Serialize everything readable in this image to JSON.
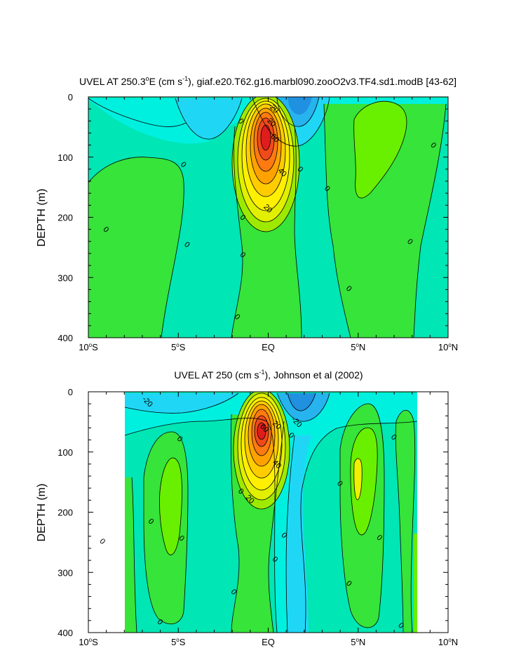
{
  "chart_data": [
    {
      "type": "contour",
      "title_main": "UVEL AT 250.3",
      "title_deg": "o",
      "title_mid": "E (cm s",
      "title_sup": "-1",
      "title_rest": "), giaf.e20.T62.g16.marbl090.zooO2v3.TF4.sd1.modB [43-62]",
      "ylabel": "DEPTH (m)",
      "xlim": [
        -10,
        10
      ],
      "ylim": [
        0,
        400
      ],
      "y_inverted": true,
      "xticks": [
        {
          "v": -10,
          "num": "10",
          "deg": "o",
          "hem": "S"
        },
        {
          "v": -5,
          "num": "5",
          "deg": "o",
          "hem": "S"
        },
        {
          "v": 0,
          "num": "EQ",
          "deg": "",
          "hem": ""
        },
        {
          "v": 5,
          "num": "5",
          "deg": "o",
          "hem": "N"
        },
        {
          "v": 10,
          "num": "10",
          "deg": "o",
          "hem": "N"
        }
      ],
      "yticks": [
        {
          "v": 0,
          "label": "0"
        },
        {
          "v": 100,
          "label": "100"
        },
        {
          "v": 200,
          "label": "200"
        },
        {
          "v": 300,
          "label": "300"
        },
        {
          "v": 400,
          "label": "400"
        }
      ],
      "contour_interval": 10,
      "core": {
        "x": 0.0,
        "depth": 90,
        "max_speed": 90
      },
      "contour_labels": [
        {
          "x": 0.3,
          "y": 18,
          "text": "-20"
        },
        {
          "x": 0.2,
          "y": 42,
          "text": "20"
        },
        {
          "x": 0.4,
          "y": 68,
          "text": "60"
        },
        {
          "x": 0.8,
          "y": 125,
          "text": "40"
        },
        {
          "x": 0.0,
          "y": 185,
          "text": "20"
        },
        {
          "x": -1.5,
          "y": 40,
          "text": "0"
        },
        {
          "x": -4.7,
          "y": 112,
          "text": "0"
        },
        {
          "x": -9.0,
          "y": 220,
          "text": "0"
        },
        {
          "x": -4.5,
          "y": 245,
          "text": "0"
        },
        {
          "x": -1.4,
          "y": 200,
          "text": "0"
        },
        {
          "x": -1.4,
          "y": 262,
          "text": "0"
        },
        {
          "x": -1.7,
          "y": 365,
          "text": "0"
        },
        {
          "x": 1.8,
          "y": 120,
          "text": "0"
        },
        {
          "x": 3.3,
          "y": 152,
          "text": "0"
        },
        {
          "x": 4.5,
          "y": 318,
          "text": "0"
        },
        {
          "x": 7.9,
          "y": 240,
          "text": "0"
        },
        {
          "x": 9.2,
          "y": 80,
          "text": "0"
        }
      ]
    },
    {
      "type": "contour",
      "title_main": "UVEL AT 250 (cm s",
      "title_sup": "-1",
      "title_rest": "), Johnson et al (2002)",
      "ylabel": "DEPTH (m)",
      "xlim": [
        -10,
        10
      ],
      "ylim": [
        0,
        400
      ],
      "y_inverted": true,
      "data_extent_x": [
        -8,
        8.3
      ],
      "xticks": [
        {
          "v": -10,
          "num": "10",
          "deg": "o",
          "hem": "S"
        },
        {
          "v": -5,
          "num": "5",
          "deg": "o",
          "hem": "S"
        },
        {
          "v": 0,
          "num": "EQ",
          "deg": "",
          "hem": ""
        },
        {
          "v": 5,
          "num": "5",
          "deg": "o",
          "hem": "N"
        },
        {
          "v": 10,
          "num": "10",
          "deg": "o",
          "hem": "N"
        }
      ],
      "yticks": [
        {
          "v": 0,
          "label": "0"
        },
        {
          "v": 100,
          "label": "100"
        },
        {
          "v": 200,
          "label": "200"
        },
        {
          "v": 300,
          "label": "300"
        },
        {
          "v": 400,
          "label": "400"
        }
      ],
      "contour_interval": 10,
      "core": {
        "x": -0.3,
        "depth": 70,
        "max_speed": 90
      },
      "contour_labels": [
        {
          "x": -6.7,
          "y": 16,
          "text": "-20"
        },
        {
          "x": 1.6,
          "y": 50,
          "text": "-20"
        },
        {
          "x": -0.2,
          "y": 60,
          "text": "60"
        },
        {
          "x": 0.5,
          "y": 55,
          "text": "20"
        },
        {
          "x": 0.5,
          "y": 120,
          "text": "40"
        },
        {
          "x": -1.0,
          "y": 178,
          "text": "20"
        },
        {
          "x": -1.5,
          "y": 165,
          "text": "0"
        },
        {
          "x": 1.3,
          "y": 72,
          "text": "0"
        },
        {
          "x": -4.9,
          "y": 78,
          "text": "0"
        },
        {
          "x": -6.5,
          "y": 215,
          "text": "0"
        },
        {
          "x": -9.2,
          "y": 248,
          "text": "0"
        },
        {
          "x": -4.8,
          "y": 243,
          "text": "0"
        },
        {
          "x": -6.0,
          "y": 382,
          "text": "0"
        },
        {
          "x": -1.9,
          "y": 332,
          "text": "0"
        },
        {
          "x": 0.4,
          "y": 278,
          "text": "0"
        },
        {
          "x": 0.9,
          "y": 238,
          "text": "0"
        },
        {
          "x": 4.0,
          "y": 152,
          "text": "0"
        },
        {
          "x": 4.5,
          "y": 318,
          "text": "0"
        },
        {
          "x": 7.0,
          "y": 75,
          "text": "0"
        },
        {
          "x": 6.2,
          "y": 242,
          "text": "0"
        },
        {
          "x": 7.4,
          "y": 388,
          "text": "0"
        }
      ]
    }
  ]
}
